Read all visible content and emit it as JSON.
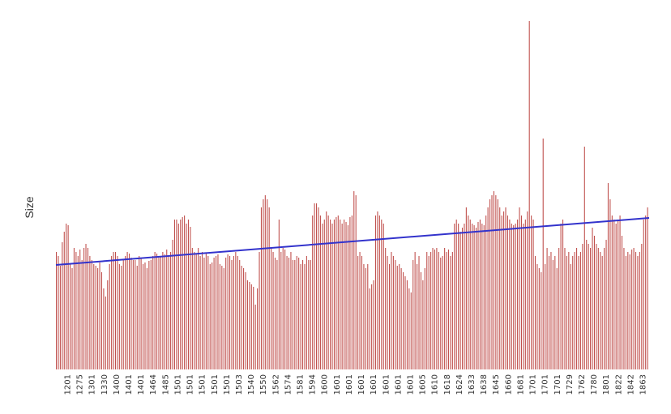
{
  "chart_data": {
    "type": "bar",
    "ylabel": "Size",
    "xlabel": "",
    "grid": false,
    "legend": "none",
    "ylim": [
      0,
      430
    ],
    "bar_color": "#c0504d",
    "trend_color": "#3333cc",
    "trend": {
      "start": 129,
      "end": 187
    },
    "tick_labels": [
      "1201",
      "1275",
      "1301",
      "1330",
      "1400",
      "1401",
      "1401",
      "1464",
      "1485",
      "1501",
      "1501",
      "1501",
      "1501",
      "1501",
      "1503",
      "1540",
      "1550",
      "1562",
      "1574",
      "1581",
      "1594",
      "1600",
      "1601",
      "1601",
      "1601",
      "1601",
      "1601",
      "1601",
      "1601",
      "1605",
      "1610",
      "1618",
      "1624",
      "1633",
      "1638",
      "1645",
      "1660",
      "1681",
      "1701",
      "1701",
      "1701",
      "1729",
      "1762",
      "1780",
      "1801",
      "1822",
      "1842",
      "1863"
    ],
    "values": [
      145,
      140,
      128,
      157,
      170,
      180,
      178,
      130,
      125,
      150,
      145,
      140,
      148,
      135,
      150,
      155,
      150,
      140,
      135,
      130,
      128,
      125,
      132,
      120,
      100,
      90,
      110,
      130,
      140,
      145,
      145,
      140,
      130,
      128,
      135,
      140,
      145,
      143,
      138,
      135,
      135,
      128,
      140,
      138,
      130,
      132,
      125,
      134,
      135,
      140,
      145,
      143,
      138,
      140,
      145,
      142,
      148,
      140,
      145,
      160,
      185,
      185,
      180,
      185,
      188,
      190,
      180,
      185,
      176,
      150,
      145,
      142,
      150,
      140,
      145,
      138,
      143,
      140,
      130,
      132,
      138,
      140,
      142,
      130,
      128,
      125,
      138,
      142,
      140,
      135,
      140,
      145,
      140,
      135,
      128,
      125,
      120,
      110,
      108,
      105,
      102,
      80,
      100,
      145,
      200,
      210,
      215,
      210,
      200,
      150,
      145,
      138,
      135,
      185,
      145,
      150,
      148,
      140,
      138,
      145,
      135,
      135,
      140,
      138,
      130,
      135,
      130,
      140,
      135,
      135,
      190,
      205,
      205,
      200,
      190,
      180,
      185,
      195,
      190,
      185,
      180,
      185,
      188,
      190,
      185,
      180,
      185,
      182,
      178,
      188,
      190,
      220,
      215,
      140,
      145,
      140,
      130,
      125,
      130,
      100,
      105,
      110,
      190,
      195,
      190,
      185,
      180,
      150,
      140,
      130,
      145,
      140,
      135,
      128,
      130,
      125,
      120,
      115,
      110,
      100,
      95,
      135,
      145,
      130,
      140,
      120,
      110,
      125,
      145,
      140,
      145,
      150,
      148,
      150,
      145,
      138,
      140,
      150,
      145,
      148,
      140,
      145,
      180,
      185,
      180,
      170,
      175,
      180,
      200,
      190,
      185,
      180,
      178,
      175,
      182,
      185,
      180,
      178,
      190,
      200,
      210,
      215,
      220,
      215,
      210,
      200,
      190,
      195,
      200,
      190,
      185,
      180,
      178,
      180,
      185,
      200,
      190,
      180,
      185,
      195,
      430,
      190,
      185,
      140,
      130,
      125,
      120,
      285,
      130,
      150,
      140,
      145,
      135,
      140,
      125,
      150,
      180,
      185,
      150,
      140,
      145,
      130,
      140,
      145,
      150,
      140,
      145,
      155,
      275,
      160,
      155,
      150,
      175,
      165,
      155,
      150,
      145,
      140,
      150,
      160,
      230,
      210,
      190,
      185,
      180,
      185,
      190,
      165,
      150,
      140,
      145,
      142,
      148,
      150,
      145,
      140,
      145,
      155,
      185,
      190,
      200
    ]
  }
}
